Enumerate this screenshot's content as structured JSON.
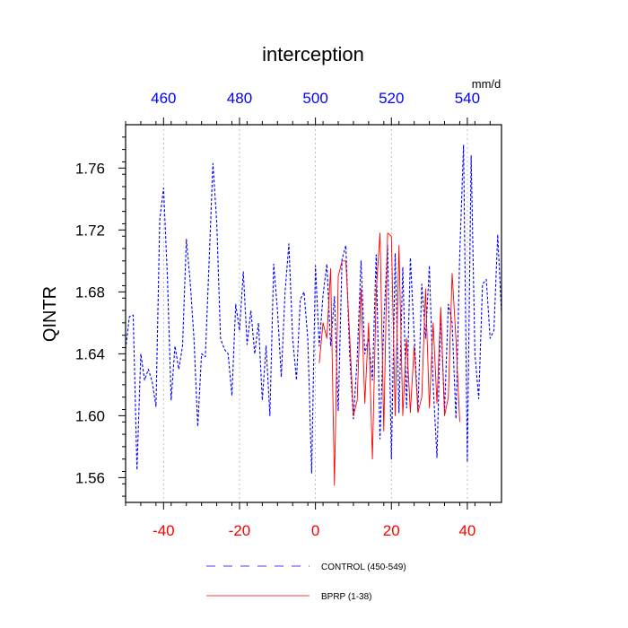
{
  "chart_data": {
    "type": "line",
    "title": "interception",
    "ylabel": "QINTR",
    "top_axis_units": "mm/d",
    "xlim": [
      -50,
      49
    ],
    "ylim": [
      1.544,
      1.788
    ],
    "top_axis_offset": 500,
    "bottom_ticks": [
      -40,
      -20,
      0,
      20,
      40
    ],
    "top_ticks": [
      460,
      480,
      500,
      520,
      540
    ],
    "y_ticks": [
      "1.56",
      "1.60",
      "1.64",
      "1.68",
      "1.72",
      "1.76"
    ],
    "colors": {
      "bottom_axis": "#ff0000",
      "top_axis": "#0000ff",
      "control": "#0000ff",
      "bprp": "#ff0000",
      "grid": "#b0b0b0"
    },
    "series": [
      {
        "name": "CONTROL (450-549)",
        "style": "dashed",
        "x_start": -50,
        "values": [
          1.643,
          1.664,
          1.665,
          1.565,
          1.64,
          1.623,
          1.63,
          1.622,
          1.606,
          1.727,
          1.747,
          1.69,
          1.61,
          1.645,
          1.63,
          1.645,
          1.714,
          1.687,
          1.65,
          1.593,
          1.64,
          1.638,
          1.7,
          1.763,
          1.725,
          1.65,
          1.643,
          1.64,
          1.613,
          1.672,
          1.655,
          1.693,
          1.646,
          1.668,
          1.64,
          1.66,
          1.61,
          1.645,
          1.6,
          1.698,
          1.668,
          1.625,
          1.68,
          1.711,
          1.65,
          1.623,
          1.675,
          1.68,
          1.649,
          1.563,
          1.697,
          1.645,
          1.678,
          1.698,
          1.645,
          1.677,
          1.603,
          1.701,
          1.71,
          1.64,
          1.598,
          1.637,
          1.7,
          1.64,
          1.65,
          1.623,
          1.704,
          1.585,
          1.66,
          1.71,
          1.572,
          1.705,
          1.602,
          1.696,
          1.605,
          1.702,
          1.652,
          1.603,
          1.685,
          1.65,
          1.697,
          1.62,
          1.573,
          1.666,
          1.603,
          1.672,
          1.66,
          1.598,
          1.704,
          1.775,
          1.57,
          1.768,
          1.64,
          1.611,
          1.685,
          1.688,
          1.65,
          1.655,
          1.717,
          1.666
        ]
      },
      {
        "name": "BPRP (1-38)",
        "style": "solid",
        "x_start": 1,
        "values": [
          1.634,
          1.66,
          1.65,
          1.695,
          1.555,
          1.69,
          1.7,
          1.7,
          1.652,
          1.6,
          1.61,
          1.682,
          1.608,
          1.66,
          1.572,
          1.68,
          1.718,
          1.59,
          1.718,
          1.716,
          1.6,
          1.71,
          1.6,
          1.65,
          1.602,
          1.645,
          1.602,
          1.612,
          1.682,
          1.605,
          1.66,
          1.608,
          1.67,
          1.6,
          1.612,
          1.692,
          1.65,
          1.596
        ]
      }
    ]
  }
}
